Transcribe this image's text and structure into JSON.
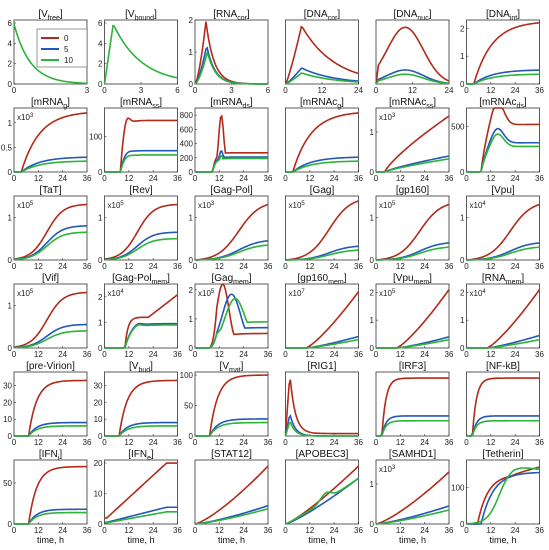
{
  "legend": {
    "items": [
      {
        "label": "0",
        "color": "#b22a1a"
      },
      {
        "label": "5",
        "color": "#2457b8"
      },
      {
        "label": "10",
        "color": "#2bb33a"
      }
    ]
  },
  "colors": {
    "s0": "#b22a1a",
    "s5": "#2457b8",
    "s10": "#2bb33a"
  },
  "xlabel": "time, h",
  "chart_data": [
    {
      "type": "line",
      "title": "[V",
      "sub": "free",
      "suf": "]",
      "xticks": [
        "0",
        "3"
      ],
      "xlim": [
        0,
        3
      ],
      "ylim": [
        0,
        6.3
      ],
      "yticks": [
        "0",
        "2",
        "4",
        "6"
      ],
      "mult": "",
      "shape": "vfree",
      "peak": 5.9
    },
    {
      "type": "line",
      "title": "[V",
      "sub": "bound",
      "suf": "]",
      "xticks": [
        "0",
        "3",
        "6"
      ],
      "xlim": [
        0,
        6
      ],
      "ylim": [
        0,
        6.3
      ],
      "yticks": [
        "0",
        "2",
        "4",
        "6"
      ],
      "mult": "",
      "shape": "vbound",
      "peak": 5.9
    },
    {
      "type": "line",
      "title": "[RNA",
      "sub": "cor",
      "suf": "]",
      "xticks": [
        "0",
        "3",
        "6"
      ],
      "xlim": [
        0,
        6
      ],
      "ylim": [
        0,
        2
      ],
      "yticks": [
        "0",
        "1",
        "2"
      ],
      "mult": "",
      "shape": "spike",
      "peaks": [
        1.95,
        1.2,
        1.0
      ]
    },
    {
      "type": "line",
      "title": "[DNA",
      "sub": "cor",
      "suf": "]",
      "xticks": [
        "0",
        "12",
        "24"
      ],
      "xlim": [
        0,
        24
      ],
      "ylim": [
        0,
        2.2
      ],
      "yticks": [],
      "mult": "",
      "shape": "hump",
      "peaks": [
        2.0,
        0.55,
        0.38
      ]
    },
    {
      "type": "line",
      "title": "[DNA",
      "sub": "nuc",
      "suf": "]",
      "xticks": [
        "0",
        "12",
        "24"
      ],
      "xlim": [
        0,
        24
      ],
      "ylim": [
        0,
        1.05
      ],
      "yticks": [],
      "mult": "",
      "shape": "humpwide",
      "peaks": [
        0.93,
        0.23,
        0.16
      ]
    },
    {
      "type": "line",
      "title": "[DNA",
      "sub": "int",
      "suf": "]",
      "xticks": [
        "0",
        "12",
        "24",
        "36"
      ],
      "xlim": [
        0,
        36
      ],
      "ylim": [
        0,
        2.3
      ],
      "yticks": [
        "0",
        "1",
        "2"
      ],
      "mult": "",
      "shape": "sat",
      "finals": [
        2.2,
        0.5,
        0.35
      ]
    },
    {
      "type": "line",
      "title": "[mRNA",
      "sub": "g",
      "suf": "]",
      "xticks": [
        "0",
        "12",
        "24",
        "36"
      ],
      "xlim": [
        0,
        36
      ],
      "ylim": [
        0,
        1.3
      ],
      "yticks": [
        "0",
        "0.5",
        "1"
      ],
      "mult": "x10^3",
      "shape": "sat",
      "finals": [
        1.2,
        0.3,
        0.22
      ]
    },
    {
      "type": "line",
      "title": "[mRNA",
      "sub": "ss",
      "suf": "]",
      "xticks": [
        "0",
        "12",
        "24",
        "36"
      ],
      "xlim": [
        0,
        36
      ],
      "ylim": [
        0,
        180
      ],
      "yticks": [
        "0",
        "100"
      ],
      "mult": "",
      "shape": "overshoot",
      "finals": [
        145,
        60,
        48
      ]
    },
    {
      "type": "line",
      "title": "[mRNA",
      "sub": "ds",
      "suf": "]",
      "xticks": [
        "0",
        "12",
        "24",
        "36"
      ],
      "xlim": [
        0,
        36
      ],
      "ylim": [
        0,
        900
      ],
      "yticks": [
        "0",
        "200",
        "400",
        "600",
        "800"
      ],
      "mult": "",
      "shape": "spikeds",
      "finals": [
        270,
        210,
        190
      ]
    },
    {
      "type": "line",
      "title": "[mRNAc",
      "sub": "g",
      "suf": "]",
      "xticks": [
        "0",
        "12",
        "24",
        "36"
      ],
      "xlim": [
        0,
        36
      ],
      "ylim": [
        0,
        1.3
      ],
      "yticks": [],
      "mult": "",
      "shape": "sat",
      "finals": [
        1.2,
        0.3,
        0.22
      ]
    },
    {
      "type": "line",
      "title": "[mRNAc",
      "sub": "ss",
      "suf": "]",
      "xticks": [
        "0",
        "12",
        "24",
        "36"
      ],
      "xlim": [
        0,
        36
      ],
      "ylim": [
        0,
        1.6
      ],
      "yticks": [
        "0",
        "1"
      ],
      "mult": "x10^3",
      "shape": "satlin",
      "finals": [
        1.4,
        0.4,
        0.33
      ]
    },
    {
      "type": "line",
      "title": "[mRNAc",
      "sub": "ds",
      "suf": "]",
      "xticks": [
        "0",
        "12",
        "24",
        "36"
      ],
      "xlim": [
        0,
        36
      ],
      "ylim": [
        0,
        700
      ],
      "yticks": [
        "0",
        "500"
      ],
      "mult": "",
      "shape": "overshoot2",
      "finals": [
        520,
        320,
        280
      ]
    },
    {
      "type": "line",
      "title": "[TaT]",
      "sub": "",
      "suf": "",
      "xticks": [
        "0",
        "12",
        "24",
        "36"
      ],
      "xlim": [
        0,
        36
      ],
      "ylim": [
        0,
        1.5
      ],
      "yticks": [
        "0",
        "1"
      ],
      "mult": "x10^5",
      "shape": "sig",
      "finals": [
        1.3,
        0.8,
        0.65
      ]
    },
    {
      "type": "line",
      "title": "[Rev]",
      "sub": "",
      "suf": "",
      "xticks": [
        "0",
        "12",
        "24",
        "36"
      ],
      "xlim": [
        0,
        36
      ],
      "ylim": [
        0,
        1.5
      ],
      "yticks": [
        "0",
        "1"
      ],
      "mult": "x10^5",
      "shape": "sig",
      "finals": [
        1.3,
        0.65,
        0.5
      ]
    },
    {
      "type": "line",
      "title": "[Gag-Pol]",
      "sub": "",
      "suf": "",
      "xticks": [
        "0",
        "12",
        "24",
        "36"
      ],
      "xlim": [
        0,
        36
      ],
      "ylim": [
        0,
        1.5
      ],
      "yticks": [
        "0",
        "1"
      ],
      "mult": "x10^3",
      "shape": "sigslow",
      "finals": [
        1.3,
        0.45,
        0.35
      ]
    },
    {
      "type": "line",
      "title": "[Gag]",
      "sub": "",
      "suf": "",
      "xticks": [
        "0",
        "12",
        "24",
        "36"
      ],
      "xlim": [
        0,
        36
      ],
      "ylim": [
        0,
        1.3
      ],
      "yticks": [],
      "mult": "x10^5",
      "shape": "sigslow",
      "finals": [
        1.2,
        0.28,
        0.2
      ]
    },
    {
      "type": "line",
      "title": "[gp160]",
      "sub": "",
      "suf": "",
      "xticks": [
        "0",
        "12",
        "24",
        "36"
      ],
      "xlim": [
        0,
        36
      ],
      "ylim": [
        0,
        1.5
      ],
      "yticks": [
        "0",
        "1"
      ],
      "mult": "x10^5",
      "shape": "sigslow",
      "finals": [
        1.3,
        0.4,
        0.3
      ]
    },
    {
      "type": "line",
      "title": "[Vpu]",
      "sub": "",
      "suf": "",
      "xticks": [
        "0",
        "12",
        "24",
        "36"
      ],
      "xlim": [
        0,
        36
      ],
      "ylim": [
        0,
        1.5
      ],
      "yticks": [
        "0",
        "1"
      ],
      "mult": "x10^4",
      "shape": "sigslow",
      "finals": [
        1.3,
        0.4,
        0.3
      ]
    },
    {
      "type": "line",
      "title": "[Vif]",
      "sub": "",
      "suf": "",
      "xticks": [
        "0",
        "12",
        "24",
        "36"
      ],
      "xlim": [
        0,
        36
      ],
      "ylim": [
        0,
        1.5
      ],
      "yticks": [
        "0",
        "1"
      ],
      "mult": "x10^5",
      "shape": "sig",
      "finals": [
        1.3,
        0.55,
        0.4
      ]
    },
    {
      "type": "line",
      "title": "[Gag-Pol",
      "sub": "mem",
      "suf": "]",
      "xticks": [
        "0",
        "12",
        "24",
        "36"
      ],
      "xlim": [
        0,
        36
      ],
      "ylim": [
        0,
        2.5
      ],
      "yticks": [
        "0",
        "1",
        "2"
      ],
      "mult": "x10^4",
      "shape": "gagpolmem",
      "finals": [
        2.1,
        0.95,
        0.9
      ]
    },
    {
      "type": "line",
      "title": "[Gag",
      "sub": "mem",
      "suf": "]",
      "xticks": [
        "0",
        "12",
        "24",
        "36"
      ],
      "xlim": [
        0,
        36
      ],
      "ylim": [
        0,
        2.2
      ],
      "yticks": [
        "0",
        "1",
        "2"
      ],
      "mult": "x10^5",
      "shape": "gagmem",
      "finals": [
        0.5,
        0.7,
        0.9
      ]
    },
    {
      "type": "line",
      "title": "[gp160",
      "sub": "mem",
      "suf": "]",
      "xticks": [
        "0",
        "12",
        "24",
        "36"
      ],
      "xlim": [
        0,
        36
      ],
      "ylim": [
        0,
        2.5
      ],
      "yticks": [],
      "mult": "x10^7",
      "shape": "lin",
      "finals": [
        2.2,
        0.45,
        0.33
      ]
    },
    {
      "type": "line",
      "title": "[Vpu",
      "sub": "mem",
      "suf": "]",
      "xticks": [
        "0",
        "12",
        "24",
        "36"
      ],
      "xlim": [
        0,
        36
      ],
      "ylim": [
        0,
        2.3
      ],
      "yticks": [
        "0",
        "1",
        "2"
      ],
      "mult": "x10^5",
      "shape": "lin",
      "finals": [
        2.1,
        0.4,
        0.3
      ]
    },
    {
      "type": "line",
      "title": "[RNA",
      "sub": "mem",
      "suf": "]",
      "xticks": [
        "0",
        "12",
        "24",
        "36"
      ],
      "xlim": [
        0,
        36
      ],
      "ylim": [
        0,
        2.3
      ],
      "yticks": [
        "0",
        "1",
        "2"
      ],
      "mult": "x10^4",
      "shape": "lin",
      "finals": [
        2.1,
        0.45,
        0.3
      ]
    },
    {
      "type": "line",
      "title": "[pre-Virion]",
      "sub": "",
      "suf": "",
      "xticks": [
        "0",
        "12",
        "24",
        "36"
      ],
      "xlim": [
        0,
        36
      ],
      "ylim": [
        0,
        38
      ],
      "yticks": [
        "0",
        "10",
        "20",
        "30"
      ],
      "mult": "",
      "shape": "sigfast",
      "finals": [
        33,
        8,
        6
      ]
    },
    {
      "type": "line",
      "title": "[V",
      "sub": "bud",
      "suf": "]",
      "xticks": [
        "0",
        "12",
        "24",
        "36"
      ],
      "xlim": [
        0,
        36
      ],
      "ylim": [
        0,
        38
      ],
      "yticks": [
        "0",
        "10",
        "20",
        "30"
      ],
      "mult": "",
      "shape": "sigfast",
      "finals": [
        33,
        8,
        6
      ]
    },
    {
      "type": "line",
      "title": "[V",
      "sub": "mat",
      "suf": "]",
      "xticks": [
        "0",
        "12",
        "24",
        "36"
      ],
      "xlim": [
        0,
        36
      ],
      "ylim": [
        0,
        105
      ],
      "yticks": [
        "0",
        "50",
        "100"
      ],
      "mult": "",
      "shape": "sigfast",
      "finals": [
        100,
        28,
        22
      ]
    },
    {
      "type": "line",
      "title": "[RIG1]",
      "sub": "",
      "suf": "",
      "xticks": [
        "0",
        "12",
        "24",
        "36"
      ],
      "xlim": [
        0,
        36
      ],
      "ylim": [
        0,
        1.3
      ],
      "yticks": [],
      "mult": "",
      "shape": "rig",
      "peaks": [
        1.2,
        0.45,
        0.3
      ]
    },
    {
      "type": "line",
      "title": "[IRF3]",
      "sub": "",
      "suf": "",
      "xticks": [
        "0",
        "12",
        "24",
        "36"
      ],
      "xlim": [
        0,
        36
      ],
      "ylim": [
        0,
        1.05
      ],
      "yticks": [],
      "mult": "",
      "shape": "satfast",
      "finals": [
        0.95,
        0.33,
        0.25
      ]
    },
    {
      "type": "line",
      "title": "[NF-kB]",
      "sub": "",
      "suf": "",
      "xticks": [
        "0",
        "12",
        "24",
        "36"
      ],
      "xlim": [
        0,
        36
      ],
      "ylim": [
        0,
        1.05
      ],
      "yticks": [],
      "mult": "",
      "shape": "satfast",
      "finals": [
        0.95,
        0.33,
        0.25
      ]
    },
    {
      "type": "line",
      "title": "[IFN",
      "sub": "i",
      "suf": "]",
      "xticks": [
        "0",
        "12",
        "24",
        "36"
      ],
      "xlim": [
        0,
        36
      ],
      "ylim": [
        0,
        78
      ],
      "yticks": [
        "0",
        "50"
      ],
      "mult": "",
      "shape": "sigfast",
      "finals": [
        70,
        18,
        14
      ]
    },
    {
      "type": "line",
      "title": "[IFN",
      "sub": "e",
      "suf": "]",
      "xticks": [
        "0",
        "12",
        "24",
        "36"
      ],
      "xlim": [
        0,
        36
      ],
      "ylim": [
        0,
        21
      ],
      "yticks": [
        "0",
        "10",
        "20"
      ],
      "mult": "",
      "shape": "ifne",
      "finals": [
        20,
        5.5,
        4
      ]
    },
    {
      "type": "line",
      "title": "[STAT12]",
      "sub": "",
      "suf": "",
      "xticks": [
        "0",
        "12",
        "24",
        "36"
      ],
      "xlim": [
        0,
        36
      ],
      "ylim": [
        0,
        1.05
      ],
      "yticks": [],
      "mult": "",
      "shape": "lin2",
      "finals": [
        0.95,
        0.3,
        0.25
      ]
    },
    {
      "type": "line",
      "title": "[APOBEC3]",
      "sub": "",
      "suf": "",
      "xticks": [
        "0",
        "12",
        "24",
        "36"
      ],
      "xlim": [
        0,
        36
      ],
      "ylim": [
        0,
        1.05
      ],
      "yticks": [],
      "mult": "",
      "shape": "apobec",
      "finals": [
        0.95,
        0.75,
        0.75
      ]
    },
    {
      "type": "line",
      "title": "[SAMHD1]",
      "sub": "",
      "suf": "",
      "xticks": [
        "0",
        "12",
        "24",
        "36"
      ],
      "xlim": [
        0,
        36
      ],
      "ylim": [
        0,
        1.6
      ],
      "yticks": [
        "0",
        "1"
      ],
      "mult": "x10^3",
      "shape": "lin2",
      "finals": [
        1.3,
        0.45,
        0.35
      ]
    },
    {
      "type": "line",
      "title": "[Tetherin]",
      "sub": "",
      "suf": "",
      "xticks": [
        "0",
        "12",
        "24",
        "36"
      ],
      "xlim": [
        0,
        36
      ],
      "ylim": [
        0,
        175
      ],
      "yticks": [
        "0",
        "100"
      ],
      "mult": "",
      "shape": "tetherin",
      "finals": [
        160,
        135,
        130
      ]
    }
  ]
}
